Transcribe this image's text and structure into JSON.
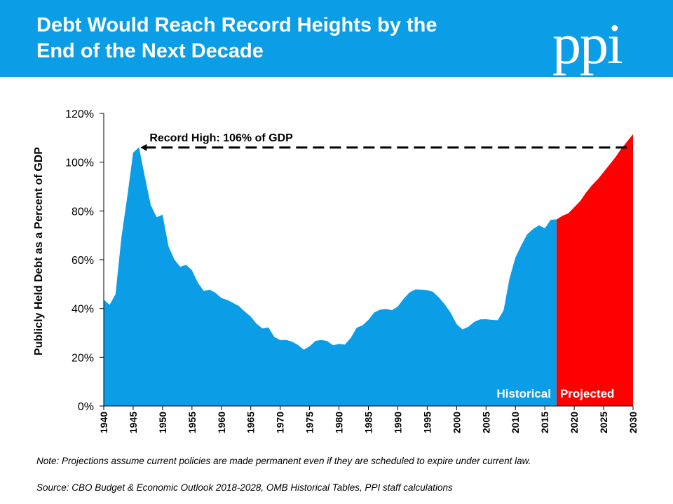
{
  "header": {
    "title_line1": "Debt Would Reach Record Heights by the",
    "title_line2": "End of the Next Decade",
    "logo_text": "ppi",
    "banner_color": "#0b9ee6"
  },
  "chart_data": {
    "type": "area",
    "title": "Debt Would Reach Record Heights by the End of the Next Decade",
    "ylabel": "Publicly Held Debt as a Percent of GDP",
    "xlabel": "",
    "ylim": [
      0,
      120
    ],
    "xlim": [
      1940,
      2030
    ],
    "y_ticks": [
      "0%",
      "20%",
      "40%",
      "60%",
      "80%",
      "100%",
      "120%"
    ],
    "x_ticks": [
      "1940",
      "1945",
      "1950",
      "1955",
      "1960",
      "1965",
      "1970",
      "1975",
      "1980",
      "1985",
      "1990",
      "1995",
      "2000",
      "2005",
      "2010",
      "2015",
      "2020",
      "2025",
      "2030"
    ],
    "series": [
      {
        "name": "Historical",
        "color": "#0b9ee6",
        "x": [
          1940,
          1941,
          1942,
          1943,
          1944,
          1945,
          1946,
          1947,
          1948,
          1949,
          1950,
          1951,
          1952,
          1953,
          1954,
          1955,
          1956,
          1957,
          1958,
          1959,
          1960,
          1961,
          1962,
          1963,
          1964,
          1965,
          1966,
          1967,
          1968,
          1969,
          1970,
          1971,
          1972,
          1973,
          1974,
          1975,
          1976,
          1977,
          1978,
          1979,
          1980,
          1981,
          1982,
          1983,
          1984,
          1985,
          1986,
          1987,
          1988,
          1989,
          1990,
          1991,
          1992,
          1993,
          1994,
          1995,
          1996,
          1997,
          1998,
          1999,
          2000,
          2001,
          2002,
          2003,
          2004,
          2005,
          2006,
          2007,
          2008,
          2009,
          2010,
          2011,
          2012,
          2013,
          2014,
          2015,
          2016,
          2017
        ],
        "values": [
          43.6,
          41.5,
          45.9,
          69.2,
          86.0,
          103.9,
          106.1,
          93.9,
          82.4,
          77.4,
          78.5,
          65.5,
          60.1,
          57.1,
          57.9,
          55.7,
          50.6,
          47.2,
          47.7,
          46.4,
          44.3,
          43.5,
          42.3,
          41.0,
          38.7,
          36.7,
          33.7,
          31.8,
          32.2,
          28.3,
          27.0,
          27.1,
          26.4,
          25.1,
          23.1,
          24.5,
          26.7,
          27.1,
          26.6,
          24.9,
          25.5,
          25.2,
          27.9,
          32.1,
          33.1,
          35.3,
          38.4,
          39.5,
          39.8,
          39.3,
          40.8,
          44.0,
          46.6,
          47.8,
          47.7,
          47.5,
          46.8,
          44.5,
          41.6,
          38.2,
          33.6,
          31.4,
          32.5,
          34.5,
          35.5,
          35.6,
          35.3,
          35.2,
          39.3,
          52.3,
          60.9,
          65.9,
          70.4,
          72.6,
          74.1,
          72.9,
          76.4,
          76.5
        ]
      },
      {
        "name": "Projected",
        "color": "#ff0000",
        "x": [
          2017,
          2018,
          2019,
          2020,
          2021,
          2022,
          2023,
          2024,
          2025,
          2026,
          2027,
          2028,
          2029,
          2030
        ],
        "values": [
          76.5,
          78.0,
          79.0,
          81.5,
          84.0,
          87.5,
          90.5,
          93.0,
          96.0,
          99.0,
          102.0,
          105.5,
          108.5,
          111.5
        ]
      }
    ],
    "annotation": {
      "label": "Record High: 106% of GDP",
      "value": 106,
      "from_x": 1946,
      "to_x": 2030
    },
    "segment_labels": {
      "historical": "Historical",
      "projected": "Projected"
    },
    "grid": false,
    "legend": "none"
  },
  "footer": {
    "note": "Note: Projections assume current policies are made permanent even if they are scheduled to expire under current law.",
    "source": "Source: CBO Budget & Economic Outlook 2018-2028, OMB Historical Tables, PPI staff calculations"
  }
}
